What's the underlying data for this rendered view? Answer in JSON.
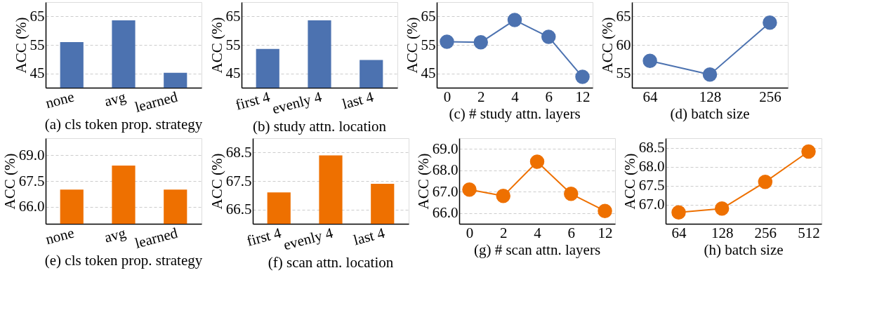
{
  "chart_data": [
    {
      "type": "bar",
      "title": "(a) cls token prop. strategy",
      "ylabel": "ACC (%)",
      "categories": [
        "none",
        "avg",
        "learned"
      ],
      "series": [
        {
          "color": "#4c72b0",
          "values": [
            56.0,
            63.6,
            45.2
          ]
        }
      ],
      "ylim": [
        40,
        70
      ],
      "yticks": [
        45,
        55,
        65
      ],
      "grid": "y"
    },
    {
      "type": "bar",
      "title": "(b) study attn. location",
      "ylabel": "ACC (%)",
      "categories": [
        "first 4",
        "evenly 4",
        "last 4"
      ],
      "series": [
        {
          "color": "#4c72b0",
          "values": [
            53.6,
            63.6,
            49.7
          ]
        }
      ],
      "ylim": [
        40,
        70
      ],
      "yticks": [
        45,
        55,
        65
      ],
      "grid": "y"
    },
    {
      "type": "line",
      "title": "(c) # study attn. layers",
      "ylabel": "ACC (%)",
      "categories": [
        "0",
        "2",
        "4",
        "6",
        "12"
      ],
      "series": [
        {
          "color": "#4c72b0",
          "values": [
            56.1,
            55.9,
            63.7,
            57.8,
            43.8
          ]
        }
      ],
      "ylim": [
        40,
        70
      ],
      "yticks": [
        45,
        55,
        65
      ],
      "grid": "y",
      "marker": "circle"
    },
    {
      "type": "line",
      "title": "(d) batch size",
      "ylabel": "ACC (%)",
      "categories": [
        "64",
        "128",
        "256"
      ],
      "series": [
        {
          "color": "#4c72b0",
          "values": [
            57.2,
            54.8,
            63.9
          ]
        }
      ],
      "ylim": [
        52.5,
        67.5
      ],
      "yticks": [
        55,
        60,
        65
      ],
      "grid": "y",
      "marker": "circle"
    },
    {
      "type": "bar",
      "title": "(e) cls token prop. strategy",
      "ylabel": "ACC (%)",
      "categories": [
        "none",
        "avg",
        "learned"
      ],
      "series": [
        {
          "color": "#ee7000",
          "values": [
            67.0,
            68.4,
            67.0
          ]
        }
      ],
      "ylim": [
        65,
        70
      ],
      "yticks": [
        {
          "value": 66,
          "label": "66.0"
        },
        67.5,
        {
          "value": 69,
          "label": "69.0"
        }
      ],
      "grid": "y"
    },
    {
      "type": "bar",
      "title": "(f) scan attn. location",
      "ylabel": "ACC (%)",
      "categories": [
        "first 4",
        "evenly 4",
        "last 4"
      ],
      "series": [
        {
          "color": "#ee7000",
          "values": [
            67.1,
            68.4,
            67.4
          ]
        }
      ],
      "ylim": [
        66,
        69
      ],
      "yticks": [
        66.5,
        67.5,
        68.5
      ],
      "grid": "y"
    },
    {
      "type": "line",
      "title": "(g) # scan attn. layers",
      "ylabel": "ACC (%)",
      "categories": [
        "0",
        "2",
        "4",
        "6",
        "12"
      ],
      "series": [
        {
          "color": "#ee7000",
          "values": [
            67.1,
            66.8,
            68.4,
            66.9,
            66.1
          ]
        }
      ],
      "ylim": [
        65.5,
        69.5
      ],
      "yticks": [
        {
          "value": 66,
          "label": "66.0"
        },
        {
          "value": 67,
          "label": "67.0"
        },
        {
          "value": 68,
          "label": "68.0"
        },
        {
          "value": 69,
          "label": "69.0"
        }
      ],
      "grid": "y",
      "marker": "circle"
    },
    {
      "type": "line",
      "title": "(h) batch size",
      "ylabel": "ACC (%)",
      "categories": [
        "64",
        "128",
        "256",
        "512"
      ],
      "series": [
        {
          "color": "#ee7000",
          "values": [
            66.8,
            66.9,
            67.6,
            68.4
          ]
        }
      ],
      "ylim": [
        66.5,
        68.75
      ],
      "yticks": [
        {
          "value": 67,
          "label": "67.0"
        },
        67.5,
        {
          "value": 68,
          "label": "68.0"
        },
        68.5
      ],
      "grid": "y",
      "marker": "circle"
    }
  ]
}
